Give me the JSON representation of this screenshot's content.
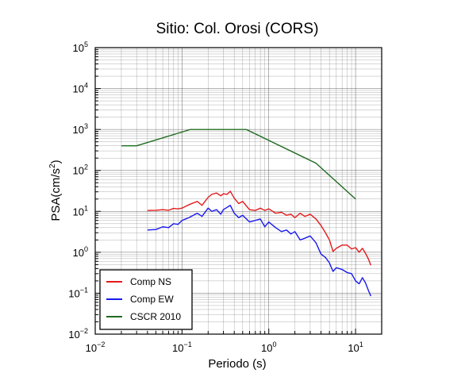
{
  "chart_data": {
    "type": "line",
    "title": "Sitio: Col. Orosi (CORS)",
    "xlabel": "Periodo (s)",
    "ylabel_main": "PSA(cm/s",
    "ylabel_sup": "2",
    "ylabel_close": ")",
    "xscale": "log",
    "yscale": "log",
    "xlim": [
      0.01,
      20
    ],
    "ylim": [
      0.01,
      100000
    ],
    "grid": true,
    "legend_position": "bottom-left",
    "x_ticks": [
      {
        "base": "10",
        "exp": "−2"
      },
      {
        "base": "10",
        "exp": "−1"
      },
      {
        "base": "10",
        "exp": "0"
      },
      {
        "base": "10",
        "exp": "1"
      }
    ],
    "y_ticks": [
      {
        "base": "10",
        "exp": "−2"
      },
      {
        "base": "10",
        "exp": "−1"
      },
      {
        "base": "10",
        "exp": "0"
      },
      {
        "base": "10",
        "exp": "1"
      },
      {
        "base": "10",
        "exp": "2"
      },
      {
        "base": "10",
        "exp": "3"
      },
      {
        "base": "10",
        "exp": "4"
      },
      {
        "base": "10",
        "exp": "5"
      }
    ],
    "series": [
      {
        "name": "Comp NS",
        "color": "#e31a1c",
        "x": [
          0.04,
          0.05,
          0.06,
          0.07,
          0.08,
          0.09,
          0.1,
          0.12,
          0.15,
          0.17,
          0.2,
          0.22,
          0.25,
          0.28,
          0.3,
          0.33,
          0.36,
          0.4,
          0.45,
          0.5,
          0.6,
          0.7,
          0.8,
          0.9,
          1.0,
          1.2,
          1.4,
          1.6,
          1.8,
          2.0,
          2.3,
          2.6,
          3.0,
          3.5,
          4.0,
          4.5,
          5.0,
          5.5,
          6.0,
          7.0,
          8.0,
          9.0,
          10.0,
          11.0,
          12.0,
          13.0,
          14.0,
          15.0
        ],
        "y": [
          10.5,
          10.6,
          11.0,
          10.6,
          11.8,
          11.5,
          12.0,
          14.5,
          17.5,
          14.0,
          22.0,
          26.0,
          28.0,
          24.0,
          27.0,
          26.0,
          31.0,
          21.0,
          15.5,
          17.5,
          11.0,
          10.5,
          12.0,
          10.5,
          11.5,
          9.0,
          9.5,
          8.0,
          8.5,
          7.0,
          9.0,
          7.5,
          8.5,
          6.5,
          4.5,
          3.0,
          2.0,
          1.05,
          1.25,
          1.5,
          1.5,
          1.2,
          1.3,
          1.0,
          1.25,
          0.95,
          0.7,
          0.48
        ]
      },
      {
        "name": "Comp EW",
        "color": "#1a1aee",
        "x": [
          0.04,
          0.05,
          0.06,
          0.07,
          0.08,
          0.09,
          0.1,
          0.12,
          0.15,
          0.17,
          0.2,
          0.22,
          0.25,
          0.28,
          0.3,
          0.33,
          0.36,
          0.4,
          0.45,
          0.5,
          0.6,
          0.7,
          0.8,
          0.9,
          1.0,
          1.2,
          1.4,
          1.6,
          1.8,
          2.0,
          2.3,
          2.6,
          3.0,
          3.5,
          4.0,
          4.5,
          5.0,
          5.5,
          6.0,
          7.0,
          8.0,
          9.0,
          10.0,
          11.0,
          12.0,
          13.0,
          14.0,
          15.0
        ],
        "y": [
          3.5,
          3.6,
          4.2,
          4.0,
          5.0,
          4.8,
          6.0,
          7.0,
          9.0,
          7.5,
          12.0,
          10.0,
          11.0,
          8.5,
          11.0,
          12.5,
          14.0,
          9.0,
          7.0,
          8.0,
          5.5,
          6.0,
          6.5,
          4.2,
          5.5,
          4.0,
          3.2,
          3.5,
          2.8,
          3.2,
          2.0,
          2.2,
          2.5,
          1.7,
          0.9,
          0.75,
          0.55,
          0.34,
          0.42,
          0.38,
          0.32,
          0.3,
          0.2,
          0.17,
          0.24,
          0.18,
          0.12,
          0.085
        ]
      },
      {
        "name": "CSCR 2010",
        "color": "#1f6b1f",
        "x": [
          0.02,
          0.03,
          0.125,
          0.55,
          3.5,
          10.0
        ],
        "y": [
          400,
          400,
          1000,
          1000,
          150,
          20
        ]
      }
    ]
  }
}
